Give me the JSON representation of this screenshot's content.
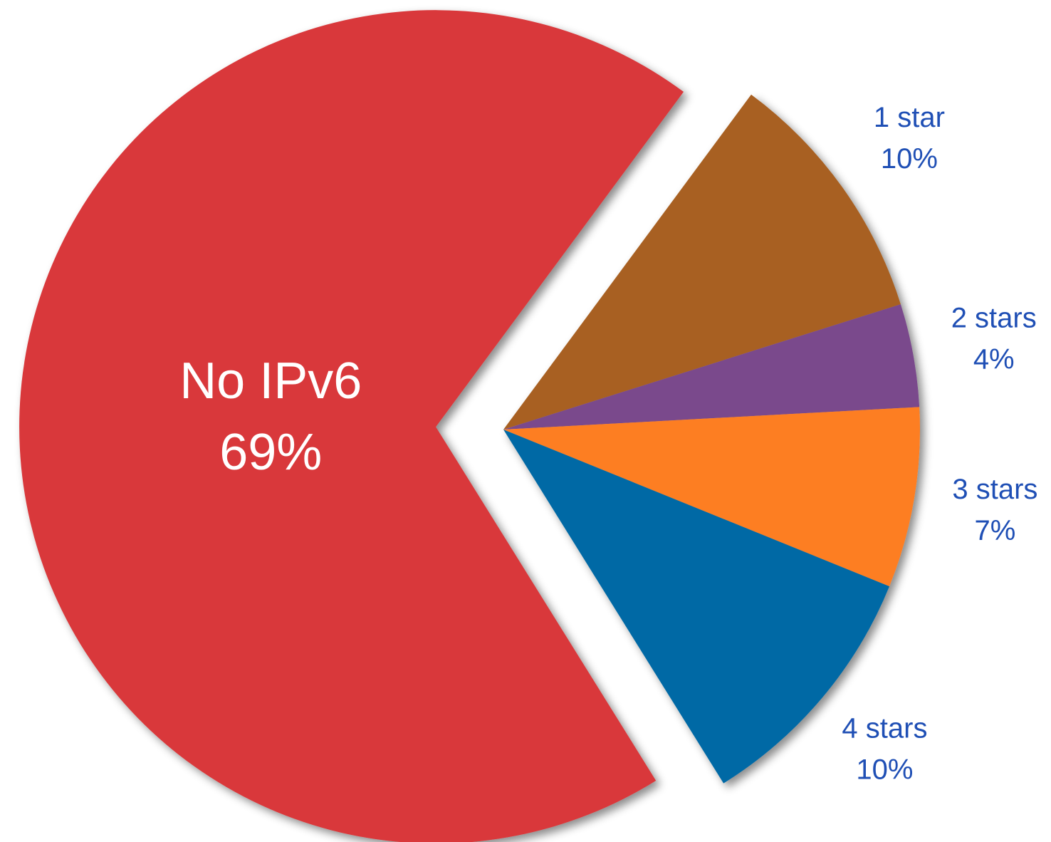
{
  "chart_data": {
    "type": "pie",
    "categories": [
      "No IPv6",
      "1 star",
      "2 stars",
      "3 stars",
      "4 stars"
    ],
    "values": [
      69,
      10,
      4,
      7,
      10
    ],
    "value_labels": [
      "69%",
      "10%",
      "4%",
      "7%",
      "10%"
    ],
    "colors": [
      "#d9383a",
      "#a86121",
      "#7a4a8c",
      "#fd7e20",
      "#0069a5"
    ]
  }
}
